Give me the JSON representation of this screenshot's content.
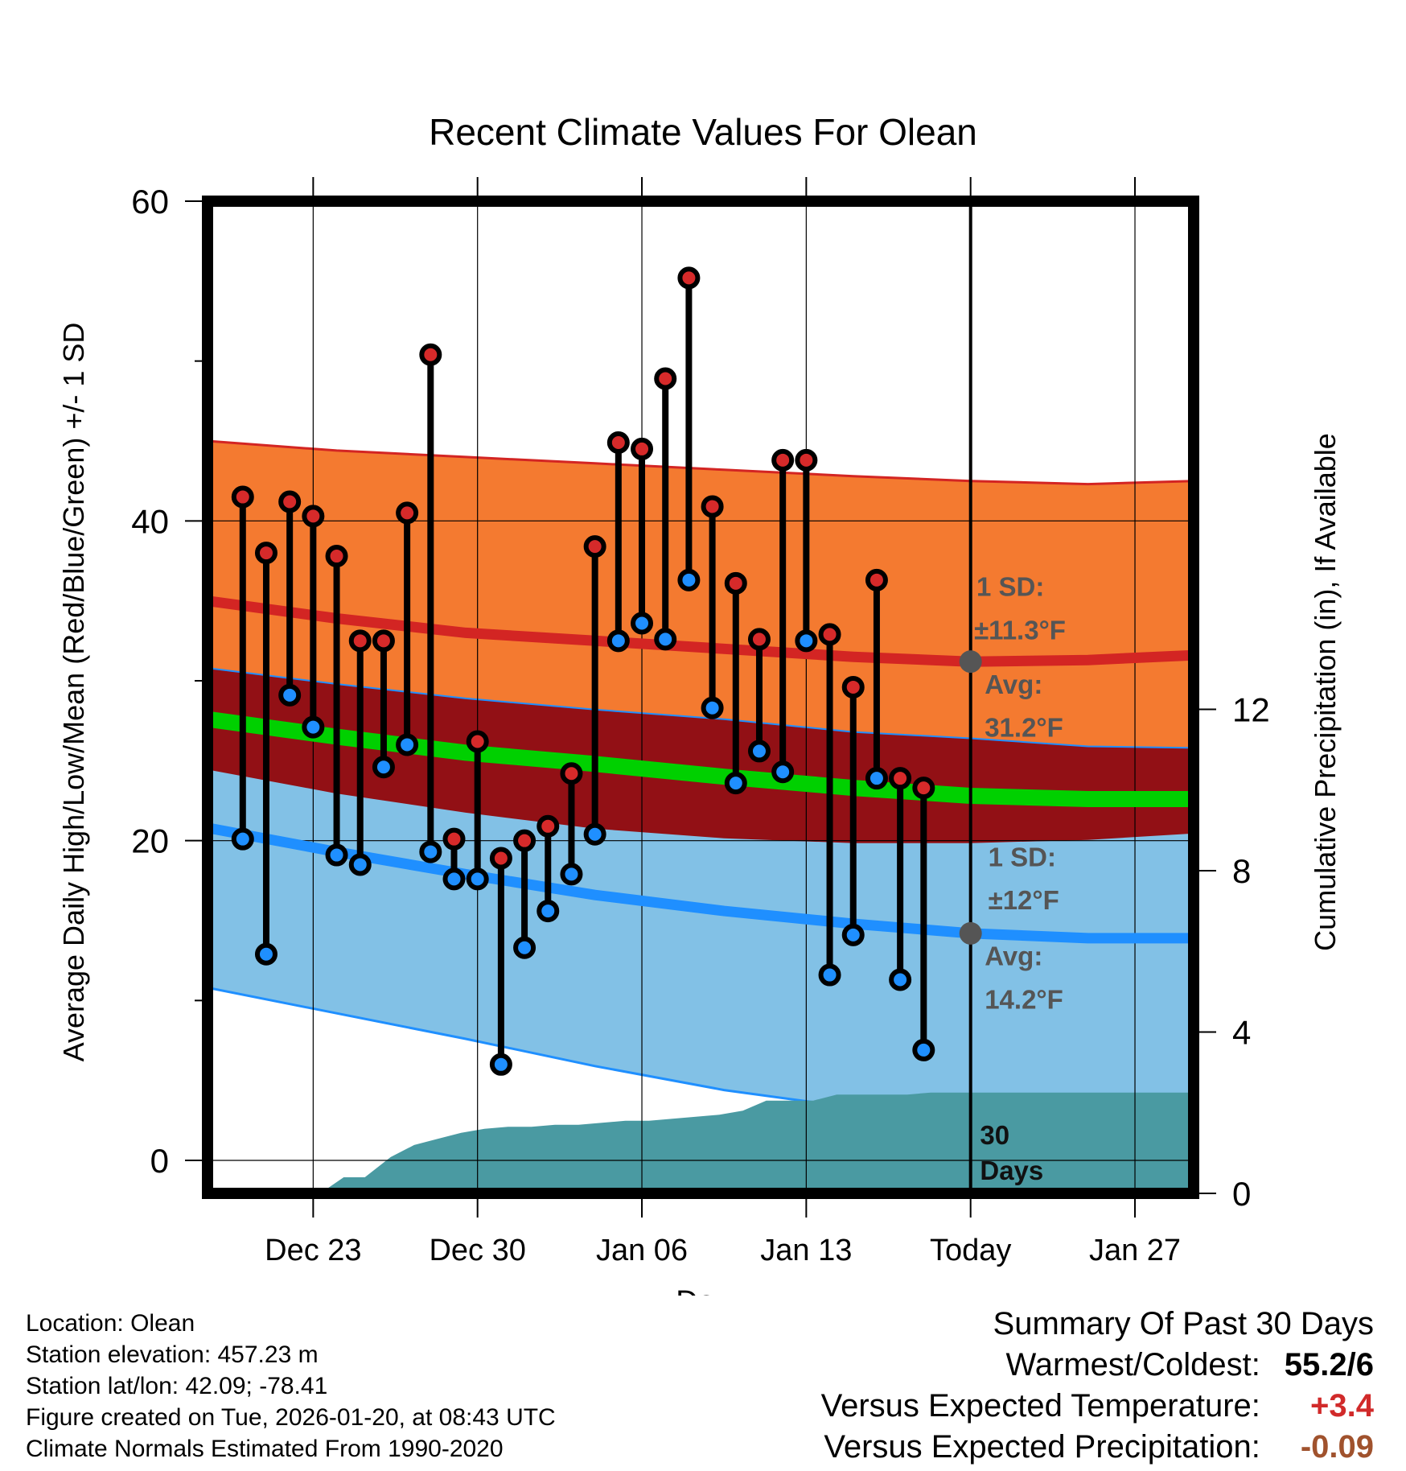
{
  "chart_data": {
    "type": "line",
    "title": "Recent Climate Values For Olean",
    "xlabel": "Day",
    "ylabel": "Average Daily High/Low/Mean (Red/Blue/Green) +/- 1 SD",
    "ylabel_right": "Cumulative Precipitation (in), If Available",
    "xlim": [
      -1.5,
      40.5
    ],
    "ylim": [
      -1.5,
      60
    ],
    "ylim_right": [
      0,
      24.6
    ],
    "x_ticks": [
      {
        "x": 3,
        "label": "Dec 23"
      },
      {
        "x": 10,
        "label": "Dec 30"
      },
      {
        "x": 17,
        "label": "Jan 06"
      },
      {
        "x": 24,
        "label": "Jan 13"
      },
      {
        "x": 31,
        "label": "Today"
      },
      {
        "x": 38,
        "label": "Jan 27"
      }
    ],
    "y_ticks": [
      0,
      20,
      40,
      60
    ],
    "y_ticks_right": [
      0,
      4,
      8,
      12
    ],
    "today_x": 31,
    "normals": {
      "x": [
        -1.5,
        4,
        9.5,
        15,
        20.5,
        26,
        31,
        36,
        40.5
      ],
      "high_avg": [
        35,
        33.9,
        33.0,
        32.5,
        32.0,
        31.5,
        31.2,
        31.3,
        31.6
      ],
      "high_upper": [
        45,
        44.4,
        44.0,
        43.6,
        43.2,
        42.8,
        42.5,
        42.3,
        42.5
      ],
      "high_lower": [
        30.8,
        29.8,
        28.9,
        28.2,
        27.6,
        26.8,
        26.4,
        25.9,
        25.8
      ],
      "mean_avg": [
        27.6,
        26.5,
        25.5,
        24.8,
        24.0,
        23.3,
        22.8,
        22.6,
        22.6
      ],
      "low_avg": [
        20.8,
        19.3,
        17.9,
        16.6,
        15.6,
        14.8,
        14.2,
        13.9,
        13.9
      ],
      "low_upper": [
        24.5,
        23.0,
        21.8,
        20.8,
        20.2,
        19.9,
        19.9,
        20.1,
        20.5
      ],
      "low_lower": [
        10.8,
        9.2,
        7.6,
        5.9,
        4.4,
        3.3,
        2.6,
        2.5,
        2.6
      ]
    },
    "series": [
      {
        "name": "Daily High",
        "color": "#d62a2a",
        "values": [
          41.5,
          38,
          41.2,
          40.3,
          37.8,
          32.5,
          32.5,
          40.5,
          50.4,
          20.1,
          26.2,
          18.9,
          20,
          20.9,
          24.2,
          38.4,
          44.9,
          44.5,
          48.9,
          55.2,
          40.9,
          36.1,
          32.6,
          43.8,
          43.8,
          32.9,
          29.6,
          36.3,
          23.9,
          23.3
        ]
      },
      {
        "name": "Daily Low",
        "color": "#1f8fff",
        "values": [
          20.1,
          12.9,
          29.1,
          27.1,
          19.1,
          18.5,
          24.6,
          26,
          19.3,
          17.6,
          17.6,
          6,
          13.3,
          15.6,
          17.9,
          20.4,
          32.5,
          33.6,
          32.6,
          36.3,
          28.3,
          23.6,
          25.6,
          24.3,
          32.5,
          11.6,
          14.1,
          23.9,
          11.3,
          6.9
        ]
      }
    ],
    "series_x_start": 0,
    "precipitation": {
      "x": [
        3.3,
        4.3,
        5.2,
        6.3,
        7.3,
        8.3,
        9.3,
        10.3,
        11.3,
        12.3,
        13.3,
        14.3,
        15.3,
        16.3,
        17.3,
        18.3,
        19.3,
        20.3,
        21.3,
        22.3,
        23.3,
        24.3,
        25.3,
        26.3,
        27.3,
        28.3,
        29.3,
        30.3,
        31.3,
        40.5
      ],
      "values": [
        0,
        0.4,
        0.4,
        0.9,
        1.2,
        1.35,
        1.5,
        1.6,
        1.65,
        1.65,
        1.7,
        1.7,
        1.75,
        1.8,
        1.8,
        1.85,
        1.9,
        1.95,
        2.05,
        2.3,
        2.3,
        2.3,
        2.45,
        2.45,
        2.45,
        2.45,
        2.5,
        2.5,
        2.5,
        2.5
      ]
    },
    "annotations": {
      "high_sd": "1 SD:",
      "high_sd_value": "±11.3°F",
      "high_avg_label": "Avg:",
      "high_avg_value": "31.2°F",
      "low_sd": "1 SD:",
      "low_sd_value": "±12°F",
      "low_avg_label": "Avg:",
      "low_avg_value": "14.2°F",
      "days_count": "30",
      "days_word": "Days"
    }
  },
  "colors": {
    "high_band": "#f47a30",
    "overlap_band": "#921015",
    "low_band": "#82c1e6",
    "high_line": "#d32523",
    "mean_line": "#00d000",
    "low_line": "#1f8fff",
    "precip_fill": "#4a9aa2",
    "annotation_text": "#555555",
    "summary_positive": "#d12a2a",
    "summary_precip": "#a0522d"
  },
  "info": {
    "location": "Location: Olean",
    "elevation": "Station elevation: 457.23 m",
    "latlon": "Station lat/lon: 42.09; -78.41",
    "created": "Figure created on Tue, 2026-01-20, at 08:43 UTC",
    "normals": "Climate Normals Estimated From 1990-2020"
  },
  "summary": {
    "title": "Summary Of Past 30 Days",
    "warmest_coldest_label": "Warmest/Coldest:",
    "warmest_coldest_value": "55.2/6",
    "temp_label": "Versus Expected Temperature:",
    "temp_value": "+3.4",
    "precip_label": "Versus Expected Precipitation:",
    "precip_value": "-0.09"
  }
}
